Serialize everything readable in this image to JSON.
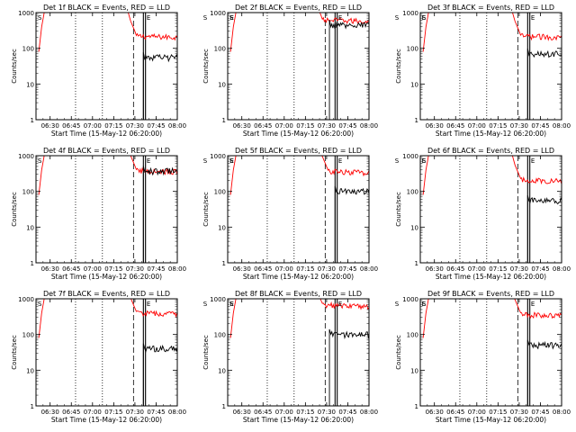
{
  "chart_data": {
    "type": "line",
    "layout": "3x3 grid",
    "ylabel": "Counts/sec",
    "xlabel": "Start Time (15-May-12 06:20:00)",
    "yscale": "log",
    "ylim": [
      1,
      1000
    ],
    "ytick_labels": [
      "1",
      "10",
      "100",
      "1000"
    ],
    "xlim": [
      "06:20",
      "08:00"
    ],
    "xtick_labels": [
      "06:30",
      "06:45",
      "07:00",
      "07:15",
      "07:30",
      "07:45",
      "08:00"
    ],
    "series_colors": {
      "events": "#000000",
      "lld": "#ff0000"
    },
    "marker_labels": [
      "S",
      "E"
    ],
    "panels": [
      {
        "title": "Det 1f BLACK = Events, RED = LLD",
        "events_level": 55,
        "lld_level": 230
      },
      {
        "title": "Det 2f BLACK = Events, RED = LLD",
        "events_level": 450,
        "lld_level": 650
      },
      {
        "title": "Det 3f BLACK = Events, RED = LLD",
        "events_level": 70,
        "lld_level": 230
      },
      {
        "title": "Det 4f BLACK = Events, RED = LLD",
        "events_level": 370,
        "lld_level": 400
      },
      {
        "title": "Det 5f BLACK = Events, RED = LLD",
        "events_level": 100,
        "lld_level": 380
      },
      {
        "title": "Det 6f BLACK = Events, RED = LLD",
        "events_level": 55,
        "lld_level": 220
      },
      {
        "title": "Det 7f BLACK = Events, RED = LLD",
        "events_level": 40,
        "lld_level": 420
      },
      {
        "title": "Det 8f BLACK = Events, RED = LLD",
        "events_level": 100,
        "lld_level": 700
      },
      {
        "title": "Det 9f BLACK = Events, RED = LLD",
        "events_level": 50,
        "lld_level": 380
      }
    ]
  }
}
